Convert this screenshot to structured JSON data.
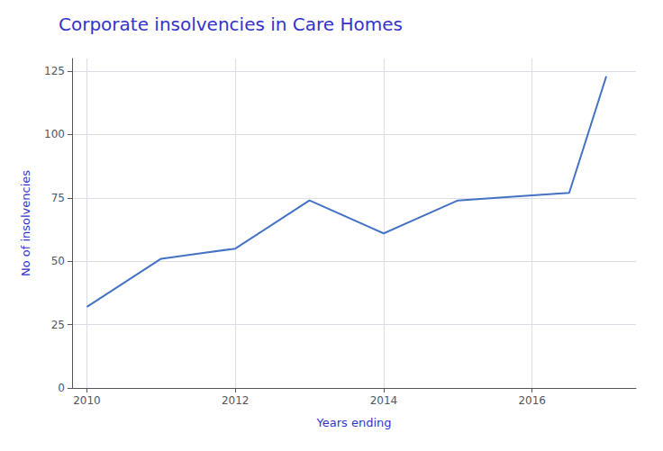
{
  "chart_data": {
    "type": "line",
    "title": "Corporate insolvencies in Care Homes",
    "xlabel": "Years ending",
    "ylabel": "No of insolvencies",
    "x": [
      2010,
      2011,
      2011.5,
      2012,
      2013,
      2014,
      2015,
      2016,
      2016.5,
      2017
    ],
    "values": [
      32,
      51,
      53,
      55,
      74,
      61,
      74,
      76,
      77,
      123
    ],
    "color": "#4472C4",
    "xlim": [
      2009.8,
      2017.4
    ],
    "ylim": [
      0,
      130
    ],
    "xticks": [
      2010,
      2012,
      2014,
      2016
    ],
    "yticks": [
      0,
      25,
      50,
      75,
      100,
      125
    ],
    "grid": true
  }
}
